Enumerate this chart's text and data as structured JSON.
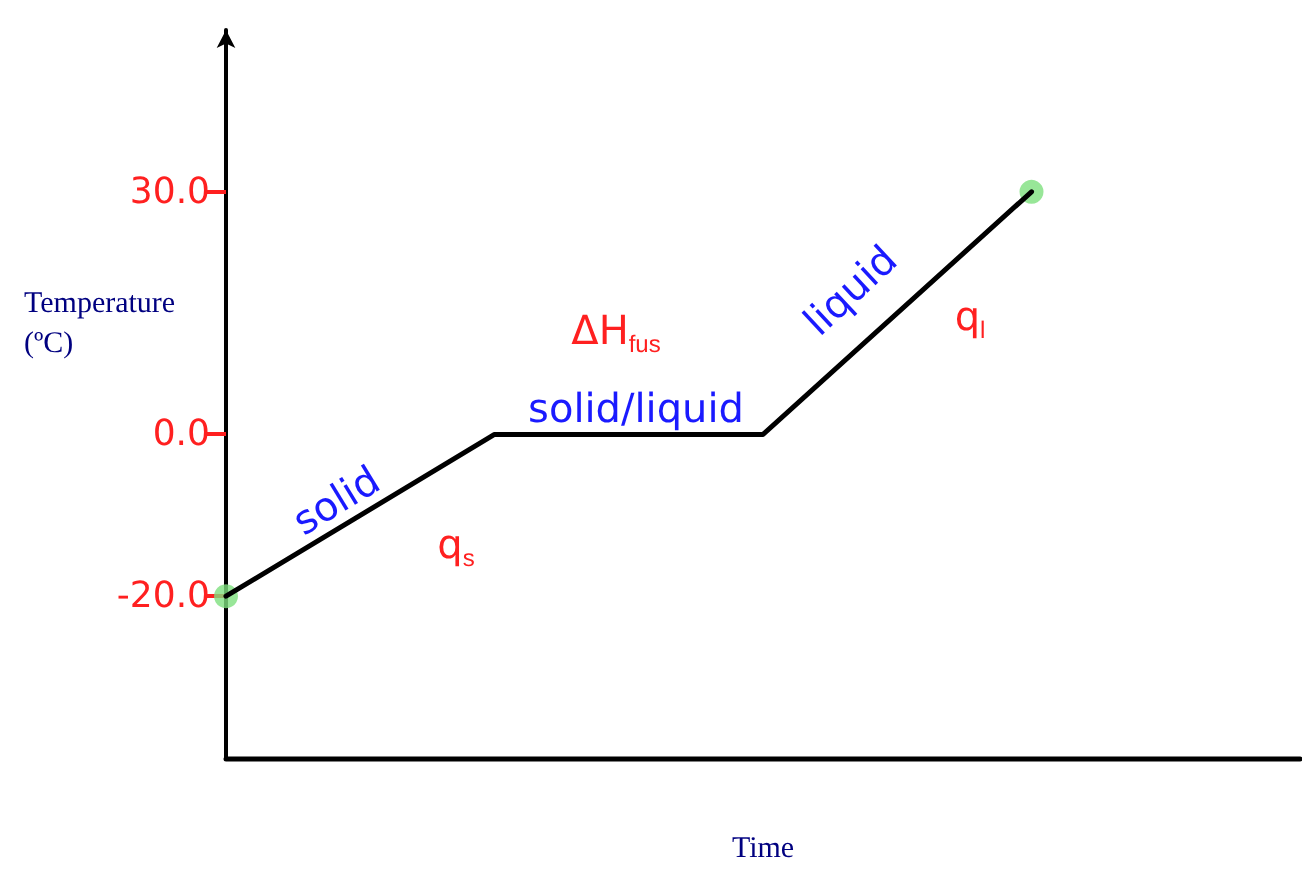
{
  "chart_data": {
    "type": "line",
    "xlabel": "Time",
    "ylabel": "Temperature\n(ºC)",
    "categories": [
      null,
      null,
      null,
      null,
      null
    ],
    "series": [
      {
        "color": "#000000",
        "values": [
          -20,
          0,
          0,
          30,
          null
        ],
        "marker": "none"
      },
      {
        "type": "scatter",
        "color": "#7ee07e",
        "values": [
          -20,
          null,
          null,
          30,
          null
        ],
        "marker": "circle"
      }
    ],
    "ylim": [
      -40,
      50
    ],
    "yticks": [
      {
        "value": -20,
        "label": "-20.0"
      },
      {
        "value": 0,
        "label": "0.0"
      },
      {
        "value": 30,
        "label": "30.0"
      }
    ],
    "tick_labels": "y",
    "grid": false,
    "annotations": [
      "solid",
      "q$_{s}$",
      "ΔH$_{fus}$",
      "solid/liquid",
      "liquid",
      "q$_{l}$"
    ]
  }
}
